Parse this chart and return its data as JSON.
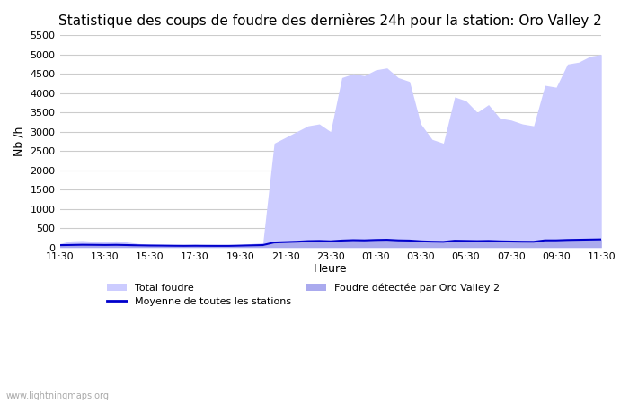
{
  "title": "Statistique des coups de foudre des dernières 24h pour la station: Oro Valley 2",
  "xlabel": "Heure",
  "ylabel": "Nb /h",
  "ylim": [
    0,
    5500
  ],
  "yticks": [
    0,
    500,
    1000,
    1500,
    2000,
    2500,
    3000,
    3500,
    4000,
    4500,
    5000,
    5500
  ],
  "x_labels": [
    "11:30",
    "13:30",
    "15:30",
    "17:30",
    "19:30",
    "21:30",
    "23:30",
    "01:30",
    "03:30",
    "05:30",
    "07:30",
    "09:30",
    "11:30"
  ],
  "watermark": "www.lightningmaps.org",
  "legend_total": "Total foudre",
  "legend_moyenne": "Moyenne de toutes les stations",
  "legend_detected": "Foudre détectée par Oro Valley 2",
  "fill_total_color": "#ccccff",
  "fill_detected_color": "#aaaaee",
  "line_moyenne_color": "#0000cc",
  "background_color": "#ffffff",
  "x_values": [
    0,
    1,
    2,
    3,
    4,
    5,
    6,
    7,
    8,
    9,
    10,
    11,
    12,
    13,
    14,
    15,
    16,
    17,
    18,
    19,
    20,
    21,
    22,
    23,
    24,
    25,
    26,
    27,
    28,
    29,
    30,
    31,
    32,
    33,
    34,
    35,
    36,
    37,
    38,
    39,
    40,
    41,
    42,
    43,
    44,
    45,
    46,
    47,
    48
  ],
  "total_foudre": [
    100,
    170,
    180,
    160,
    150,
    170,
    140,
    100,
    90,
    80,
    75,
    70,
    75,
    70,
    65,
    60,
    80,
    100,
    120,
    2700,
    2850,
    3000,
    3150,
    3200,
    3000,
    4400,
    4500,
    4450,
    4600,
    4650,
    4400,
    4300,
    3200,
    2800,
    2700,
    3900,
    3800,
    3500,
    3700,
    3350,
    3300,
    3200,
    3150,
    4200,
    4150,
    4750,
    4800,
    4950,
    5000
  ],
  "detected": [
    50,
    80,
    90,
    75,
    70,
    80,
    60,
    40,
    35,
    30,
    30,
    28,
    30,
    28,
    25,
    25,
    35,
    45,
    55,
    120,
    130,
    140,
    155,
    160,
    150,
    200,
    210,
    205,
    210,
    215,
    200,
    195,
    145,
    130,
    120,
    170,
    165,
    155,
    160,
    150,
    145,
    140,
    135,
    180,
    175,
    200,
    205,
    210,
    215
  ],
  "moyenne": [
    60,
    65,
    70,
    68,
    65,
    68,
    62,
    55,
    50,
    48,
    45,
    43,
    45,
    43,
    42,
    42,
    48,
    55,
    62,
    130,
    140,
    150,
    165,
    170,
    160,
    180,
    190,
    185,
    195,
    200,
    185,
    180,
    160,
    150,
    145,
    175,
    170,
    165,
    170,
    160,
    155,
    150,
    148,
    185,
    185,
    195,
    200,
    205,
    210
  ]
}
